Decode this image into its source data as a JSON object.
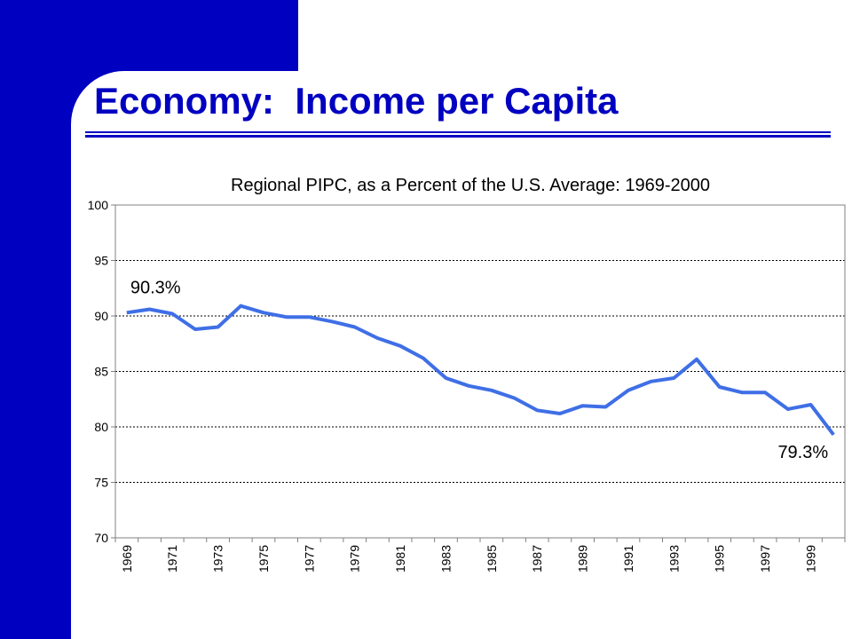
{
  "slide": {
    "title": "Economy:  Income per Capita",
    "accent_color": "#0000c0"
  },
  "chart_data": {
    "type": "line",
    "title": "Regional PIPC, as a Percent of the U.S. Average: 1969-2000",
    "xlabel": "",
    "ylabel": "",
    "ylim": [
      70,
      100
    ],
    "yticks": [
      70,
      75,
      80,
      85,
      90,
      95,
      100
    ],
    "x": [
      1969,
      1970,
      1971,
      1972,
      1973,
      1974,
      1975,
      1976,
      1977,
      1978,
      1979,
      1980,
      1981,
      1982,
      1983,
      1984,
      1985,
      1986,
      1987,
      1988,
      1989,
      1990,
      1991,
      1992,
      1993,
      1994,
      1995,
      1996,
      1997,
      1998,
      1999,
      2000
    ],
    "xtick_labels": [
      "1969",
      "1971",
      "1973",
      "1975",
      "1977",
      "1979",
      "1981",
      "1983",
      "1985",
      "1987",
      "1989",
      "1991",
      "1993",
      "1995",
      "1997",
      "1999"
    ],
    "series": [
      {
        "color": "#3f6fe6",
        "values": [
          90.3,
          90.6,
          90.2,
          88.8,
          89.0,
          90.9,
          90.3,
          89.9,
          89.9,
          89.5,
          89.0,
          88.0,
          87.3,
          86.2,
          84.4,
          83.7,
          83.3,
          82.6,
          81.5,
          81.2,
          81.9,
          81.8,
          83.3,
          84.1,
          84.4,
          86.1,
          83.6,
          83.1,
          83.1,
          81.6,
          82.0,
          79.3
        ]
      }
    ],
    "annotations": [
      {
        "text": "90.3%",
        "year": 1969
      },
      {
        "text": "79.3%",
        "year": 2000
      }
    ],
    "grid": "horizontal dotted",
    "legend": "none"
  }
}
